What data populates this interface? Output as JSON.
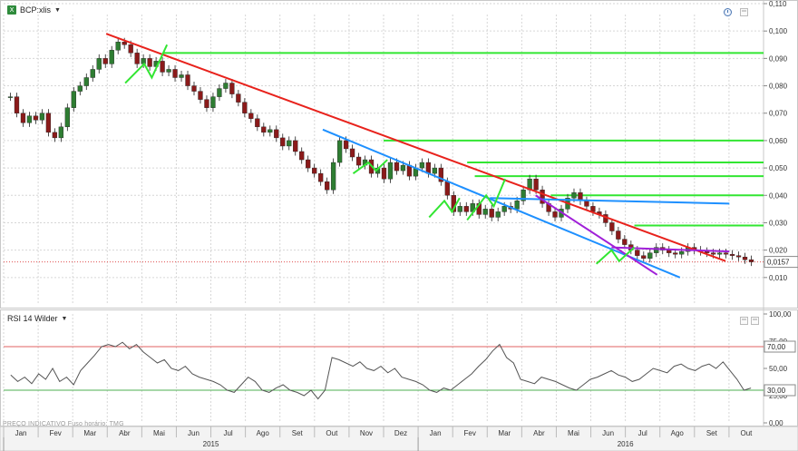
{
  "header": {
    "instrument": "BCP:xlis",
    "xls_icon": "excel-icon",
    "clock_icon": "clock-icon",
    "window_icon": "window-icon"
  },
  "rsi_header": {
    "title": "RSI 14 Wilder"
  },
  "footer": {
    "text": "PREÇO INDICATIVO   Fuso horário: TMG"
  },
  "colors": {
    "candle_up": "#2e7d32",
    "candle_down": "#8b1a1a",
    "red_line": "#e8221c",
    "blue_line": "#1e90ff",
    "green_line": "#32e632",
    "purple_line": "#a020d8",
    "rsi_line": "#555555",
    "rsi_overbought": "#e06060",
    "rsi_oversold": "#4caf50",
    "grid": "#d6d6d6"
  },
  "chart_data": [
    {
      "type": "line",
      "title": "",
      "series": [
        {
          "name": "",
          "kind": "candlestick",
          "values": [
            0.076,
            0.07,
            0.0665,
            0.069,
            0.0675,
            0.07,
            0.063,
            0.061,
            0.065,
            0.072,
            0.078,
            0.08,
            0.083,
            0.086,
            0.09,
            0.088,
            0.093,
            0.096,
            0.095,
            0.092,
            0.088,
            0.09,
            0.087,
            0.089,
            0.085,
            0.086,
            0.083,
            0.084,
            0.08,
            0.078,
            0.075,
            0.072,
            0.076,
            0.079,
            0.081,
            0.077,
            0.074,
            0.07,
            0.068,
            0.065,
            0.063,
            0.064,
            0.061,
            0.058,
            0.06,
            0.056,
            0.053,
            0.05,
            0.048,
            0.045,
            0.042,
            0.052,
            0.06,
            0.057,
            0.054,
            0.051,
            0.053,
            0.048,
            0.05,
            0.046,
            0.052,
            0.049,
            0.051,
            0.047,
            0.05,
            0.052,
            0.048,
            0.05,
            0.045,
            0.04,
            0.034,
            0.036,
            0.034,
            0.037,
            0.033,
            0.035,
            0.032,
            0.034,
            0.036,
            0.035,
            0.038,
            0.042,
            0.046,
            0.042,
            0.037,
            0.034,
            0.032,
            0.035,
            0.039,
            0.041,
            0.038,
            0.036,
            0.034,
            0.033,
            0.03,
            0.027,
            0.024,
            0.022,
            0.02,
            0.018,
            0.017,
            0.019,
            0.021,
            0.02,
            0.019,
            0.0185,
            0.0195,
            0.021,
            0.02,
            0.0195,
            0.019,
            0.0185,
            0.019,
            0.0185,
            0.018,
            0.0175,
            0.0165,
            0.0157
          ]
        }
      ],
      "ylim": [
        0.0,
        0.11
      ],
      "y_ticks": [
        "0,010",
        "0,020",
        "0,030",
        "0,040",
        "0,050",
        "0,060",
        "0,070",
        "0,080",
        "0,090",
        "0,100",
        "0,110"
      ],
      "y_tick_values": [
        0.01,
        0.02,
        0.03,
        0.04,
        0.05,
        0.06,
        0.07,
        0.08,
        0.09,
        0.1,
        0.11
      ],
      "last_price_label": "0,0157",
      "last_price": 0.0157,
      "trendlines": [
        {
          "color": "red",
          "from": [
            0.135,
            0.099
          ],
          "to": [
            0.95,
            0.016
          ]
        },
        {
          "color": "blue",
          "from": [
            0.42,
            0.064
          ],
          "to": [
            0.89,
            0.01
          ]
        },
        {
          "color": "blue",
          "from": [
            0.64,
            0.039
          ],
          "to": [
            0.955,
            0.037
          ]
        },
        {
          "color": "purple",
          "from": [
            0.7,
            0.04
          ],
          "to": [
            0.86,
            0.011
          ]
        },
        {
          "color": "purple",
          "from": [
            0.8,
            0.021
          ],
          "to": [
            0.955,
            0.0195
          ]
        }
      ],
      "horizontal_levels": [
        {
          "color": "green",
          "from_x": 0.21,
          "value": 0.092
        },
        {
          "color": "green",
          "from_x": 0.5,
          "value": 0.06
        },
        {
          "color": "green",
          "from_x": 0.61,
          "value": 0.052
        },
        {
          "color": "green",
          "from_x": 0.62,
          "value": 0.047
        },
        {
          "color": "green",
          "from_x": 0.72,
          "value": 0.04
        },
        {
          "color": "green",
          "from_x": 0.83,
          "value": 0.029
        }
      ],
      "green_zigzags": [
        [
          [
            0.16,
            0.081
          ],
          [
            0.185,
            0.088
          ],
          [
            0.195,
            0.083
          ],
          [
            0.215,
            0.095
          ]
        ],
        [
          [
            0.46,
            0.048
          ],
          [
            0.48,
            0.052
          ],
          [
            0.49,
            0.049
          ],
          [
            0.505,
            0.053
          ]
        ],
        [
          [
            0.56,
            0.032
          ],
          [
            0.58,
            0.038
          ],
          [
            0.59,
            0.034
          ],
          [
            0.6,
            0.039
          ]
        ],
        [
          [
            0.61,
            0.031
          ],
          [
            0.635,
            0.04
          ],
          [
            0.645,
            0.036
          ],
          [
            0.66,
            0.046
          ]
        ],
        [
          [
            0.78,
            0.015
          ],
          [
            0.8,
            0.02
          ],
          [
            0.81,
            0.016
          ],
          [
            0.83,
            0.021
          ]
        ]
      ]
    },
    {
      "type": "line",
      "title": "RSI 14 Wilder",
      "series": [
        {
          "name": "RSI 14 Wilder",
          "values": [
            44,
            38,
            42,
            36,
            45,
            40,
            50,
            38,
            42,
            35,
            48,
            55,
            62,
            70,
            72,
            70,
            74,
            68,
            72,
            65,
            60,
            55,
            58,
            50,
            48,
            52,
            45,
            42,
            40,
            38,
            35,
            30,
            28,
            35,
            42,
            38,
            30,
            28,
            32,
            35,
            30,
            28,
            25,
            30,
            22,
            30,
            60,
            58,
            55,
            52,
            56,
            50,
            48,
            52,
            46,
            50,
            42,
            40,
            38,
            35,
            30,
            28,
            32,
            30,
            35,
            40,
            45,
            52,
            58,
            66,
            72,
            60,
            55,
            40,
            38,
            36,
            42,
            40,
            38,
            35,
            32,
            30,
            35,
            40,
            42,
            45,
            48,
            44,
            42,
            38,
            40,
            45,
            50,
            48,
            46,
            52,
            54,
            50,
            48,
            52,
            54,
            50,
            56,
            48,
            40,
            30,
            32
          ]
        }
      ],
      "ylim": [
        0,
        100
      ],
      "y_ticks": [
        "0,00",
        "25,00",
        "50,00",
        "75,00",
        "100,00"
      ],
      "y_tick_values": [
        0,
        25,
        50,
        75,
        100
      ],
      "overbought_label": "70,00",
      "oversold_label": "30,00",
      "overbought": 70,
      "oversold": 30
    }
  ],
  "x_axis": {
    "months": [
      "Jan",
      "Fev",
      "Mar",
      "Abr",
      "Mai",
      "Jun",
      "Jul",
      "Ago",
      "Set",
      "Out",
      "Nov",
      "Dez",
      "Jan",
      "Fev",
      "Mar",
      "Abr",
      "Mai",
      "Jun",
      "Jul",
      "Ago",
      "Set",
      "Out"
    ],
    "years": [
      "2015",
      "2016"
    ]
  }
}
